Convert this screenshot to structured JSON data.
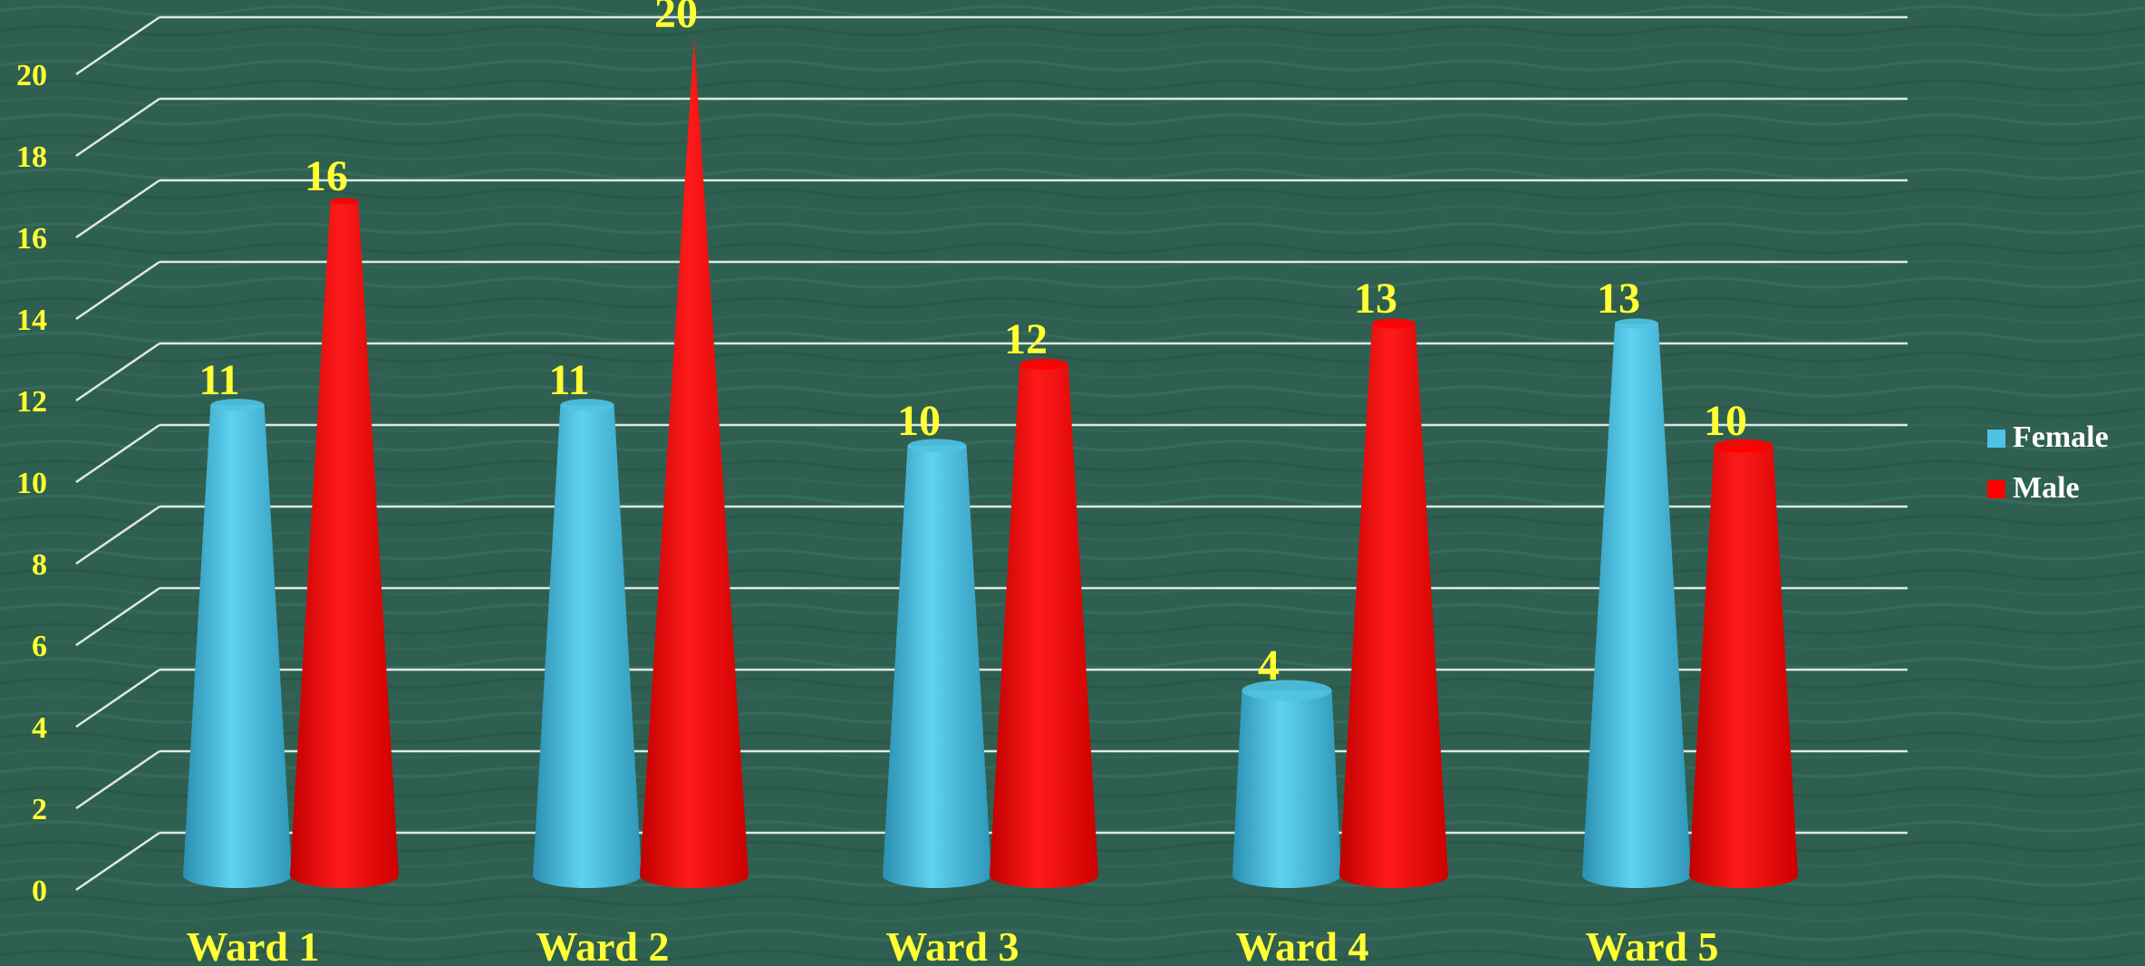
{
  "chart_data": {
    "type": "bar",
    "bar_shape": "cone",
    "categories": [
      "Ward 1",
      "Ward 2",
      "Ward 3",
      "Ward 4",
      "Ward 5"
    ],
    "series": [
      {
        "name": "Female",
        "values": [
          11,
          11,
          10,
          4,
          13
        ],
        "color": "#4fc3e3"
      },
      {
        "name": "Male",
        "values": [
          16,
          20,
          12,
          13,
          10
        ],
        "color": "#ff0000"
      }
    ],
    "y_ticks": [
      "0",
      "2",
      "4",
      "6",
      "8",
      "10",
      "12",
      "14",
      "16",
      "18",
      "20"
    ],
    "ylim": [
      0,
      20
    ],
    "grid": true,
    "legend_position": "right",
    "data_labels": true,
    "title": "",
    "xlabel": "",
    "ylabel": ""
  },
  "colors": {
    "background": "#2f5f50",
    "label_text": "#ffff33",
    "legend_text": "#ffffff",
    "gridline": "#dfe8e4"
  }
}
